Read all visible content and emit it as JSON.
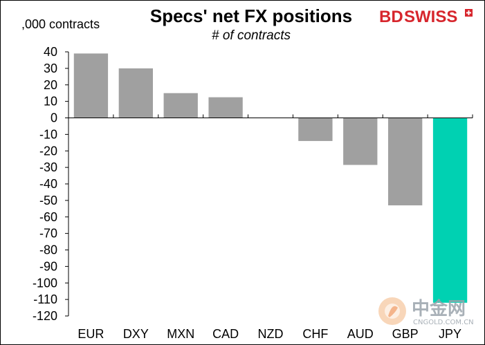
{
  "chart_data": {
    "type": "bar",
    "title": "Specs' net FX positions",
    "subtitle": "# of contracts",
    "ylabel": ",000 contracts",
    "categories": [
      "EUR",
      "DXY",
      "MXN",
      "CAD",
      "NZD",
      "CHF",
      "AUD",
      "GBP",
      "JPY"
    ],
    "values": [
      39,
      30,
      15,
      12.5,
      0,
      -14,
      -28.5,
      -53,
      -112
    ],
    "ylim": [
      -120,
      40
    ],
    "yticks": [
      40,
      30,
      20,
      10,
      0,
      -10,
      -20,
      -30,
      -40,
      -50,
      -60,
      -70,
      -80,
      -90,
      -100,
      -110,
      -120
    ],
    "grid": false,
    "legend": "none",
    "colors": {
      "default": "#a0a0a0",
      "highlight": "#00d1b2",
      "highlight_category": "JPY"
    }
  },
  "logo": {
    "text_bd": "BD",
    "text_swiss": "SWISS",
    "colors": {
      "bd": "#d7262d",
      "swiss": "#d7262d",
      "cross_box": "#d7262d"
    }
  },
  "watermark": {
    "text_cn": "中金网",
    "text_small": "CNGOLD.COM.CN",
    "icon": "cngold-flame-icon",
    "color": "#9aa3ab"
  }
}
